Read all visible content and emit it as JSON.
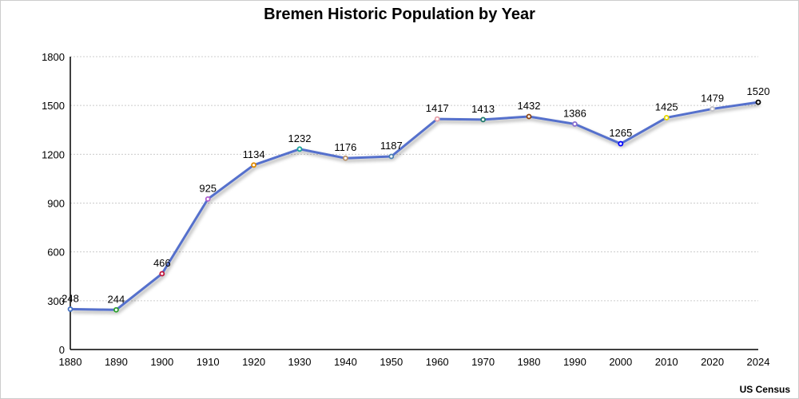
{
  "chart_data": {
    "type": "line",
    "title": "Bremen Historic Population by Year",
    "source": "US Census",
    "xlabel": "",
    "ylabel": "",
    "categories": [
      "1880",
      "1890",
      "1900",
      "1910",
      "1920",
      "1930",
      "1940",
      "1950",
      "1960",
      "1970",
      "1980",
      "1990",
      "2000",
      "2010",
      "2020",
      "2024"
    ],
    "values": [
      248,
      244,
      466,
      925,
      1134,
      1232,
      1176,
      1187,
      1417,
      1413,
      1432,
      1386,
      1265,
      1425,
      1479,
      1520
    ],
    "marker_colors": [
      "#4472c4",
      "#2ca02c",
      "#c0143c",
      "#b05fd0",
      "#e08a00",
      "#1aa39a",
      "#b8926a",
      "#4a7fb0",
      "#e8a0a8",
      "#1f7a6a",
      "#8b4513",
      "#8a6fd0",
      "#0000ff",
      "#e6d800",
      "#c0c0c8",
      "#000000"
    ],
    "line_color": "#5470cc",
    "yticks": [
      0,
      300,
      600,
      900,
      1200,
      1500,
      1800
    ],
    "ylim": [
      0,
      1800
    ],
    "grid": true
  }
}
